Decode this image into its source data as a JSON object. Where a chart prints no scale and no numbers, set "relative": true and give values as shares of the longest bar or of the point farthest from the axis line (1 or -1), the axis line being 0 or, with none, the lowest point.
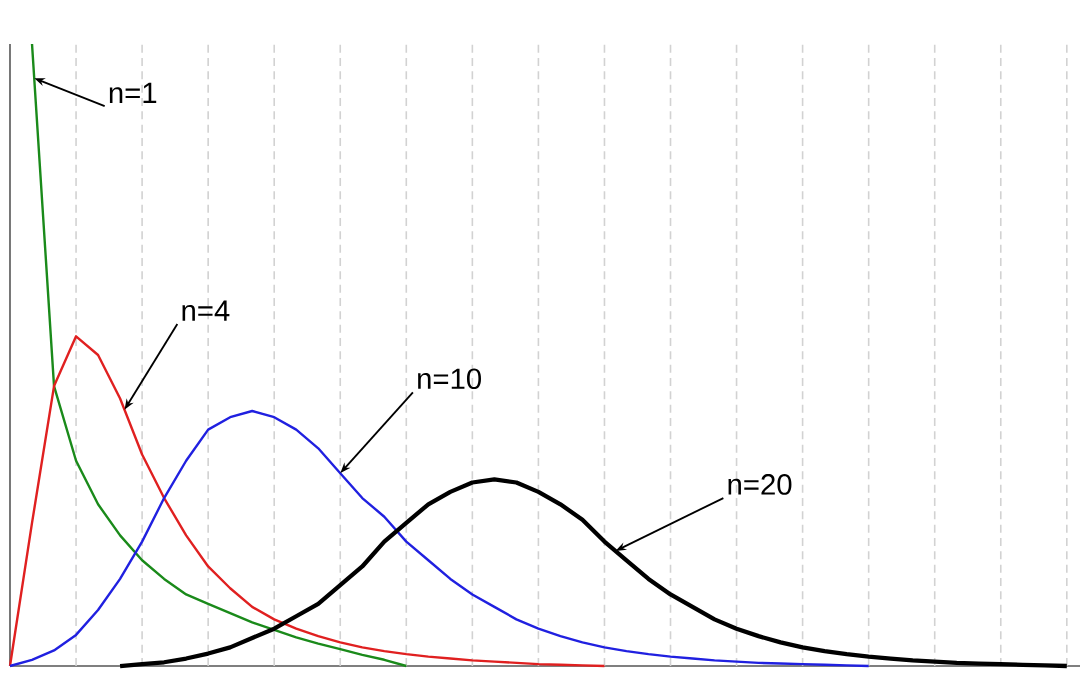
{
  "chart_data": {
    "type": "line",
    "relative": true,
    "grid": "x",
    "categories": [
      null,
      null,
      null,
      null,
      null,
      null,
      null,
      null,
      null,
      null,
      null,
      null,
      null,
      null,
      null,
      null,
      null,
      null,
      null,
      null,
      null,
      null,
      null,
      null,
      null,
      null,
      null,
      null,
      null,
      null,
      null,
      null,
      null,
      null,
      null,
      null,
      null,
      null,
      null,
      null,
      null,
      null,
      null,
      null,
      null,
      null,
      null,
      null,
      null
    ],
    "series": [
      {
        "color": "#1a8a1a",
        "values": [
          null,
          1.0,
          0.45,
          0.33,
          0.26,
          0.21,
          0.17,
          0.14,
          0.115,
          0.1,
          0.085,
          0.07,
          0.058,
          0.046,
          0.036,
          0.027,
          0.018,
          0.01,
          0.0,
          null,
          null,
          null,
          null,
          null,
          null,
          null,
          null,
          null,
          null,
          null,
          null,
          null,
          null,
          null,
          null,
          null,
          null,
          null,
          null,
          null,
          null,
          null,
          null,
          null,
          null,
          null,
          null,
          null,
          null
        ]
      },
      {
        "color": "#e02020",
        "values": [
          0,
          0.23,
          0.45,
          0.53,
          0.5,
          0.43,
          0.34,
          0.27,
          0.21,
          0.16,
          0.125,
          0.095,
          0.075,
          0.06,
          0.048,
          0.038,
          0.03,
          0.024,
          0.019,
          0.015,
          0.012,
          0.009,
          0.007,
          0.005,
          0.003,
          0.002,
          0.001,
          0.0,
          null,
          null,
          null,
          null,
          null,
          null,
          null,
          null,
          null,
          null,
          null,
          null,
          null,
          null,
          null,
          null,
          null,
          null,
          null,
          null,
          null
        ]
      },
      {
        "color": "#2020e0",
        "values": [
          0,
          0.01,
          0.025,
          0.05,
          0.09,
          0.14,
          0.2,
          0.27,
          0.33,
          0.38,
          0.4,
          0.41,
          0.4,
          0.38,
          0.35,
          0.31,
          0.27,
          0.24,
          0.2,
          0.17,
          0.14,
          0.115,
          0.095,
          0.075,
          0.06,
          0.048,
          0.038,
          0.03,
          0.024,
          0.019,
          0.015,
          0.012,
          0.009,
          0.007,
          0.005,
          0.004,
          0.003,
          0.002,
          0.001,
          0.0,
          null,
          null,
          null,
          null,
          null,
          null,
          null,
          null,
          null
        ]
      },
      {
        "color": "#000000",
        "values": [
          null,
          null,
          null,
          null,
          null,
          0,
          0.003,
          0.006,
          0.012,
          0.02,
          0.03,
          0.045,
          0.06,
          0.08,
          0.1,
          0.13,
          0.16,
          0.2,
          0.23,
          0.26,
          0.28,
          0.295,
          0.3,
          0.295,
          0.28,
          0.26,
          0.235,
          0.2,
          0.17,
          0.14,
          0.115,
          0.095,
          0.075,
          0.06,
          0.048,
          0.038,
          0.03,
          0.024,
          0.019,
          0.015,
          0.012,
          0.009,
          0.007,
          0.005,
          0.004,
          0.003,
          0.002,
          0.001,
          0.0
        ]
      }
    ],
    "annotations": [
      "n=1",
      "n=4",
      "n=10",
      "n=20"
    ]
  }
}
